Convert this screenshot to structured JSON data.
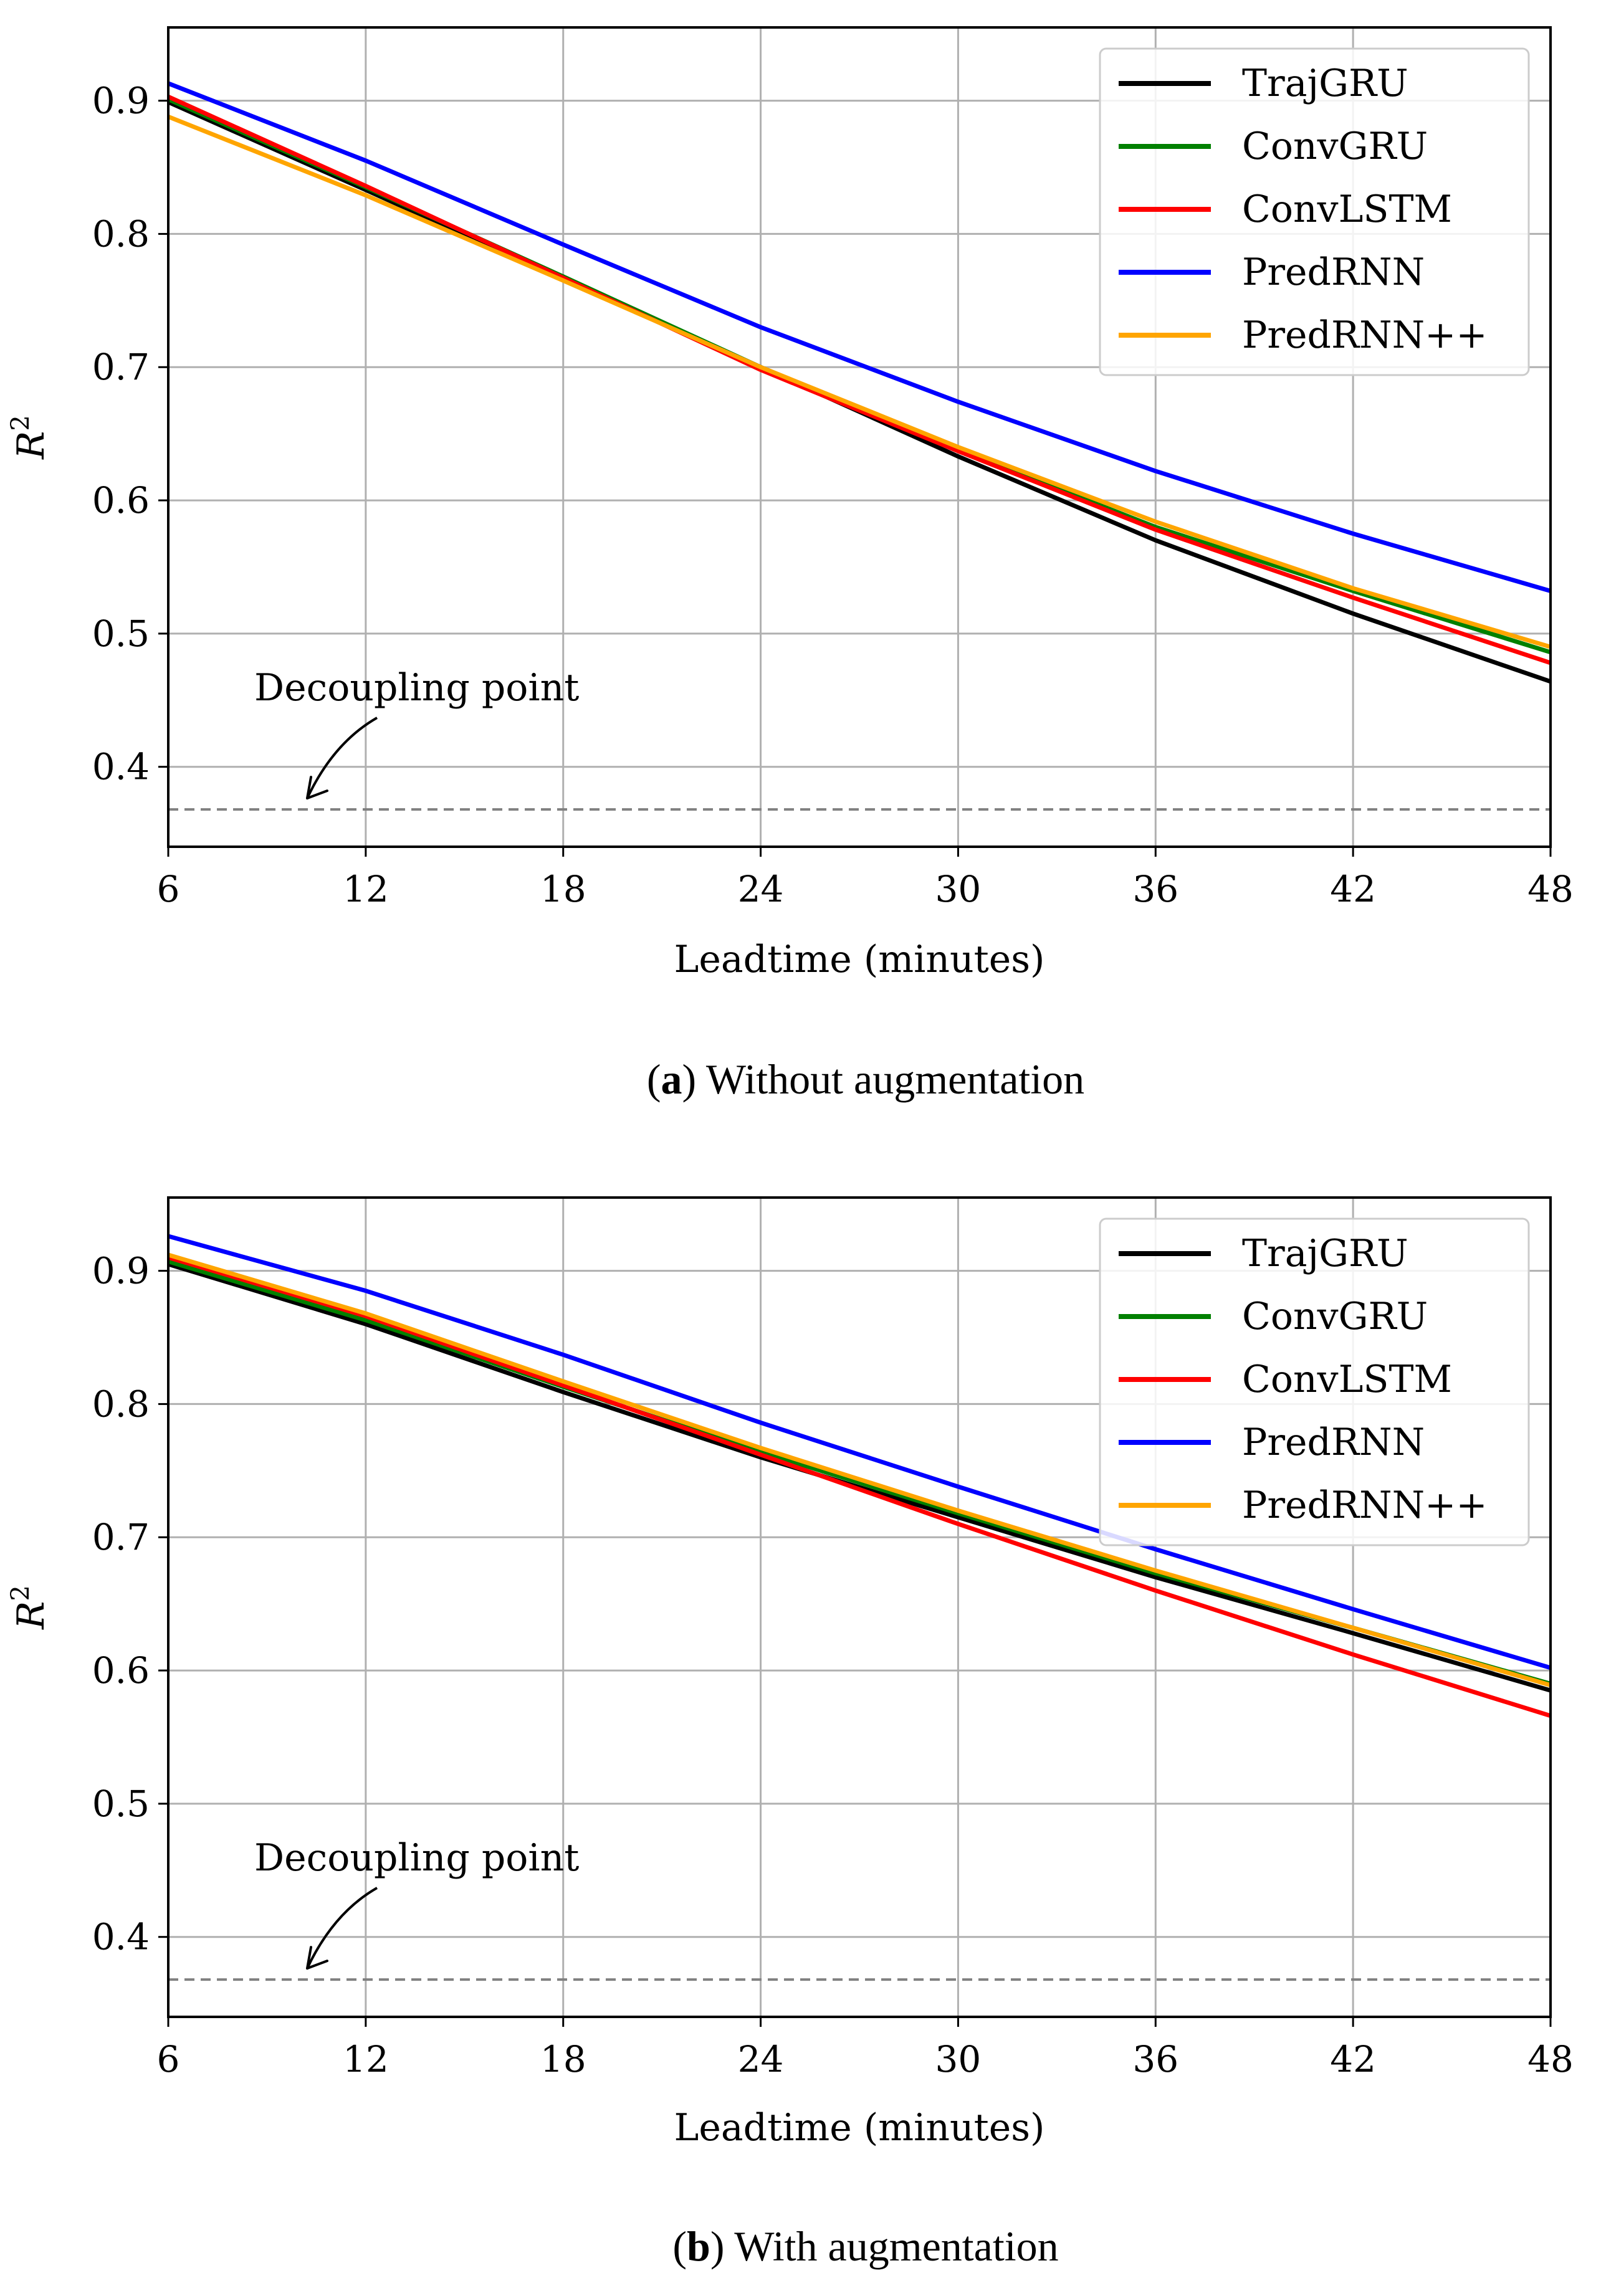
{
  "chart_data": [
    {
      "type": "line",
      "caption_letter": "a",
      "caption_text": "Without augmentation",
      "xlabel": "Leadtime (minutes)",
      "ylabel_base": "R",
      "ylabel_sup": "2",
      "x": [
        6,
        12,
        18,
        24,
        30,
        36,
        42,
        48
      ],
      "xticks": [
        "6",
        "12",
        "18",
        "24",
        "30",
        "36",
        "42",
        "48"
      ],
      "yticks": [
        "0.4",
        "0.5",
        "0.6",
        "0.7",
        "0.8",
        "0.9"
      ],
      "ytick_values": [
        0.4,
        0.5,
        0.6,
        0.7,
        0.8,
        0.9
      ],
      "xlim": [
        6,
        48
      ],
      "ylim": [
        0.34,
        0.955
      ],
      "grid": true,
      "legend_position": "top-right",
      "series": [
        {
          "name": "TrajGRU",
          "color": "#000000",
          "values": [
            0.899,
            0.833,
            0.766,
            0.7,
            0.633,
            0.57,
            0.515,
            0.464
          ]
        },
        {
          "name": "ConvGRU",
          "color": "#008000",
          "values": [
            0.901,
            0.835,
            0.768,
            0.7,
            0.638,
            0.58,
            0.532,
            0.486
          ]
        },
        {
          "name": "ConvLSTM",
          "color": "#ff0000",
          "values": [
            0.903,
            0.836,
            0.767,
            0.698,
            0.637,
            0.578,
            0.527,
            0.478
          ]
        },
        {
          "name": "PredRNN",
          "color": "#0000ff",
          "values": [
            0.913,
            0.855,
            0.792,
            0.73,
            0.674,
            0.622,
            0.575,
            0.532
          ]
        },
        {
          "name": "PredRNN++",
          "color": "#ffa500",
          "values": [
            0.888,
            0.829,
            0.765,
            0.7,
            0.64,
            0.584,
            0.534,
            0.49
          ]
        }
      ],
      "decoupling_value": 0.368,
      "decoupling_label": "Decoupling point"
    },
    {
      "type": "line",
      "caption_letter": "b",
      "caption_text": "With augmentation",
      "xlabel": "Leadtime (minutes)",
      "ylabel_base": "R",
      "ylabel_sup": "2",
      "x": [
        6,
        12,
        18,
        24,
        30,
        36,
        42,
        48
      ],
      "xticks": [
        "6",
        "12",
        "18",
        "24",
        "30",
        "36",
        "42",
        "48"
      ],
      "yticks": [
        "0.4",
        "0.5",
        "0.6",
        "0.7",
        "0.8",
        "0.9"
      ],
      "ytick_values": [
        0.4,
        0.5,
        0.6,
        0.7,
        0.8,
        0.9
      ],
      "xlim": [
        6,
        48
      ],
      "ylim": [
        0.34,
        0.955
      ],
      "grid": true,
      "legend_position": "top-right",
      "series": [
        {
          "name": "TrajGRU",
          "color": "#000000",
          "values": [
            0.905,
            0.86,
            0.809,
            0.76,
            0.715,
            0.67,
            0.628,
            0.585
          ]
        },
        {
          "name": "ConvGRU",
          "color": "#008000",
          "values": [
            0.907,
            0.863,
            0.813,
            0.764,
            0.718,
            0.673,
            0.632,
            0.59
          ]
        },
        {
          "name": "ConvLSTM",
          "color": "#ff0000",
          "values": [
            0.91,
            0.866,
            0.814,
            0.762,
            0.71,
            0.66,
            0.612,
            0.566
          ]
        },
        {
          "name": "PredRNN",
          "color": "#0000ff",
          "values": [
            0.926,
            0.885,
            0.837,
            0.786,
            0.738,
            0.691,
            0.646,
            0.602
          ]
        },
        {
          "name": "PredRNN++",
          "color": "#ffa500",
          "values": [
            0.912,
            0.868,
            0.817,
            0.767,
            0.72,
            0.675,
            0.632,
            0.589
          ]
        }
      ],
      "decoupling_value": 0.368,
      "decoupling_label": "Decoupling point"
    }
  ]
}
